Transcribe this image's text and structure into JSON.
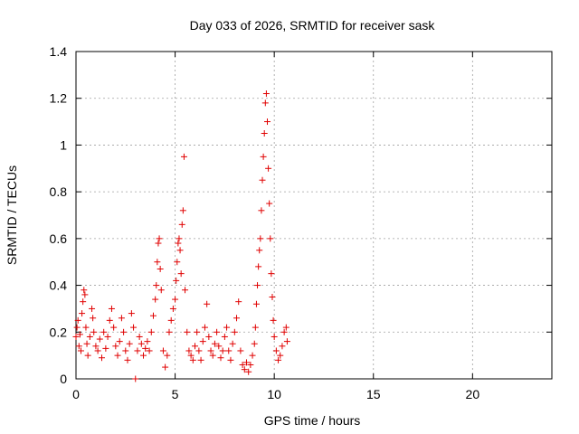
{
  "chart_data": {
    "type": "scatter",
    "title": "Day 033 of 2026, SRMTID for receiver sask",
    "xlabel": "GPS time / hours",
    "ylabel": "SRMTID / TECUs",
    "xlim": [
      0,
      24
    ],
    "ylim": [
      0,
      1.4
    ],
    "xticks": [
      0,
      5,
      10,
      15,
      20
    ],
    "xtick_labels": [
      "0",
      "5",
      "10",
      "15",
      "20"
    ],
    "yticks": [
      0,
      0.2,
      0.4,
      0.6,
      0.8,
      1,
      1.2,
      1.4
    ],
    "ytick_labels": [
      "0",
      "0.2",
      "0.4",
      "0.6",
      "0.8",
      "1",
      "1.2",
      "1.4"
    ],
    "grid": true,
    "marker": "+",
    "color": "#e00000",
    "series": [
      {
        "name": "SRMTID",
        "points": [
          [
            0.0,
            0.18
          ],
          [
            0.05,
            0.22
          ],
          [
            0.1,
            0.25
          ],
          [
            0.15,
            0.14
          ],
          [
            0.2,
            0.19
          ],
          [
            0.25,
            0.12
          ],
          [
            0.3,
            0.28
          ],
          [
            0.35,
            0.33
          ],
          [
            0.4,
            0.38
          ],
          [
            0.45,
            0.36
          ],
          [
            0.5,
            0.22
          ],
          [
            0.55,
            0.15
          ],
          [
            0.6,
            0.1
          ],
          [
            0.7,
            0.18
          ],
          [
            0.8,
            0.3
          ],
          [
            0.85,
            0.26
          ],
          [
            0.9,
            0.2
          ],
          [
            1.0,
            0.14
          ],
          [
            1.1,
            0.12
          ],
          [
            1.2,
            0.17
          ],
          [
            1.3,
            0.09
          ],
          [
            1.4,
            0.2
          ],
          [
            1.5,
            0.13
          ],
          [
            1.6,
            0.18
          ],
          [
            1.7,
            0.25
          ],
          [
            1.8,
            0.3
          ],
          [
            1.9,
            0.22
          ],
          [
            2.0,
            0.14
          ],
          [
            2.1,
            0.1
          ],
          [
            2.2,
            0.16
          ],
          [
            2.3,
            0.26
          ],
          [
            2.4,
            0.2
          ],
          [
            2.5,
            0.12
          ],
          [
            2.6,
            0.08
          ],
          [
            2.7,
            0.15
          ],
          [
            2.8,
            0.28
          ],
          [
            2.9,
            0.22
          ],
          [
            3.0,
            0.0
          ],
          [
            3.1,
            0.12
          ],
          [
            3.2,
            0.18
          ],
          [
            3.3,
            0.15
          ],
          [
            3.4,
            0.1
          ],
          [
            3.5,
            0.13
          ],
          [
            3.6,
            0.16
          ],
          [
            3.7,
            0.12
          ],
          [
            3.8,
            0.2
          ],
          [
            3.9,
            0.27
          ],
          [
            4.0,
            0.34
          ],
          [
            4.05,
            0.4
          ],
          [
            4.1,
            0.5
          ],
          [
            4.15,
            0.58
          ],
          [
            4.2,
            0.6
          ],
          [
            4.25,
            0.47
          ],
          [
            4.3,
            0.38
          ],
          [
            4.4,
            0.12
          ],
          [
            4.5,
            0.05
          ],
          [
            4.6,
            0.1
          ],
          [
            4.7,
            0.2
          ],
          [
            4.8,
            0.25
          ],
          [
            4.9,
            0.3
          ],
          [
            5.0,
            0.34
          ],
          [
            5.05,
            0.42
          ],
          [
            5.1,
            0.5
          ],
          [
            5.15,
            0.58
          ],
          [
            5.2,
            0.6
          ],
          [
            5.25,
            0.55
          ],
          [
            5.3,
            0.45
          ],
          [
            5.35,
            0.66
          ],
          [
            5.4,
            0.72
          ],
          [
            5.45,
            0.95
          ],
          [
            5.5,
            0.38
          ],
          [
            5.6,
            0.2
          ],
          [
            5.7,
            0.12
          ],
          [
            5.8,
            0.1
          ],
          [
            5.9,
            0.08
          ],
          [
            6.0,
            0.14
          ],
          [
            6.1,
            0.2
          ],
          [
            6.2,
            0.12
          ],
          [
            6.3,
            0.08
          ],
          [
            6.4,
            0.16
          ],
          [
            6.5,
            0.22
          ],
          [
            6.6,
            0.32
          ],
          [
            6.7,
            0.18
          ],
          [
            6.8,
            0.12
          ],
          [
            6.9,
            0.1
          ],
          [
            7.0,
            0.15
          ],
          [
            7.1,
            0.2
          ],
          [
            7.2,
            0.14
          ],
          [
            7.3,
            0.09
          ],
          [
            7.4,
            0.12
          ],
          [
            7.5,
            0.18
          ],
          [
            7.6,
            0.22
          ],
          [
            7.7,
            0.12
          ],
          [
            7.8,
            0.08
          ],
          [
            7.9,
            0.15
          ],
          [
            8.0,
            0.2
          ],
          [
            8.1,
            0.26
          ],
          [
            8.2,
            0.33
          ],
          [
            8.3,
            0.12
          ],
          [
            8.4,
            0.06
          ],
          [
            8.5,
            0.04
          ],
          [
            8.6,
            0.07
          ],
          [
            8.7,
            0.03
          ],
          [
            8.8,
            0.06
          ],
          [
            8.9,
            0.1
          ],
          [
            9.0,
            0.15
          ],
          [
            9.05,
            0.22
          ],
          [
            9.1,
            0.32
          ],
          [
            9.15,
            0.4
          ],
          [
            9.2,
            0.48
          ],
          [
            9.25,
            0.55
          ],
          [
            9.3,
            0.6
          ],
          [
            9.35,
            0.72
          ],
          [
            9.4,
            0.85
          ],
          [
            9.45,
            0.95
          ],
          [
            9.5,
            1.05
          ],
          [
            9.55,
            1.18
          ],
          [
            9.6,
            1.22
          ],
          [
            9.65,
            1.1
          ],
          [
            9.7,
            0.9
          ],
          [
            9.75,
            0.75
          ],
          [
            9.8,
            0.6
          ],
          [
            9.85,
            0.45
          ],
          [
            9.9,
            0.35
          ],
          [
            9.95,
            0.25
          ],
          [
            10.0,
            0.18
          ],
          [
            10.1,
            0.12
          ],
          [
            10.2,
            0.08
          ],
          [
            10.3,
            0.1
          ],
          [
            10.4,
            0.14
          ],
          [
            10.5,
            0.2
          ],
          [
            10.6,
            0.22
          ],
          [
            10.65,
            0.16
          ]
        ]
      }
    ]
  }
}
